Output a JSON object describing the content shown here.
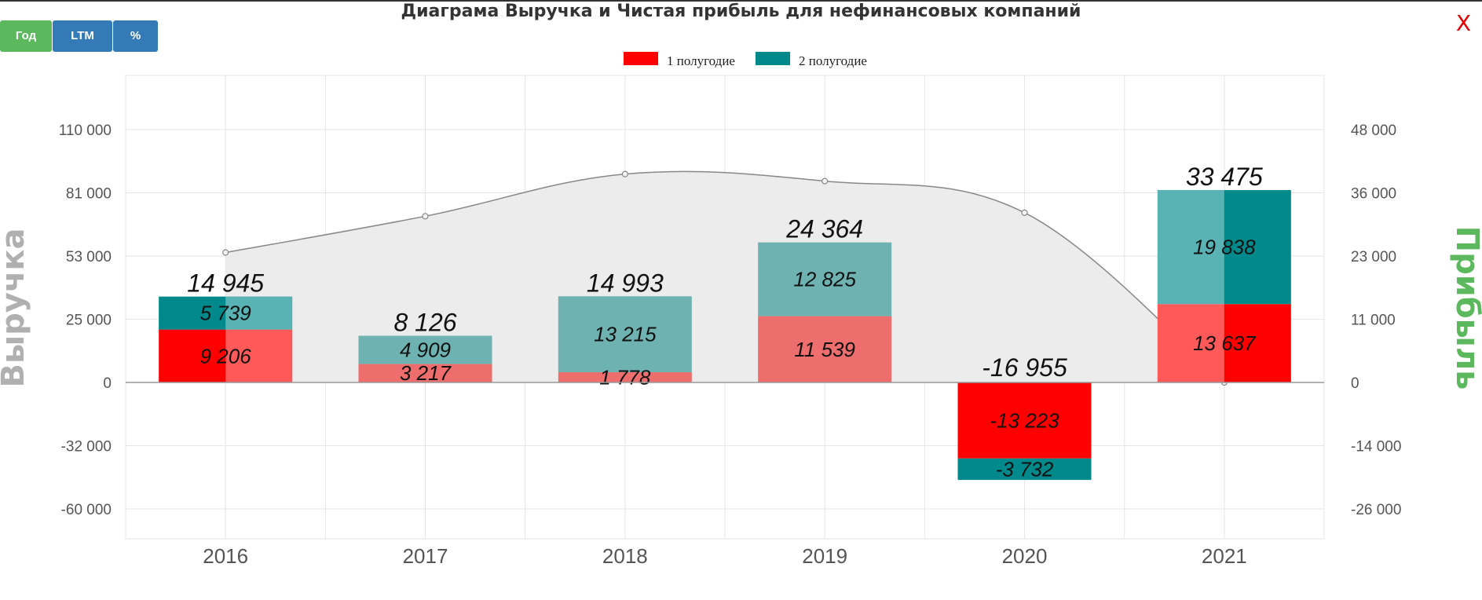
{
  "window": {
    "title": "Диаграма Выручка и Чистая прибыль для нефинансовых компаний",
    "close_label": "X"
  },
  "toolbar": {
    "year_label": "Год",
    "ltm_label": "LTM",
    "percent_label": "%"
  },
  "colors": {
    "h1": "#ff0000",
    "h1_light": "#ee6e6e",
    "h2": "#00898a",
    "h2_light": "#6fb2b2",
    "area_fill": "#ececec",
    "line": "#888888",
    "active_button": "#5cb85c",
    "button": "#337ab7",
    "close": "#e00000",
    "right_axis_title": "#5cb85c",
    "left_axis_title": "#b0b0b0"
  },
  "chart_data": {
    "type": "bar",
    "title": "Диаграма Выручка и Чистая прибыль для нефинансовых компаний",
    "categories": [
      "2016",
      "2017",
      "2018",
      "2019",
      "2020",
      "2021"
    ],
    "legend": {
      "position": "top-center",
      "items": [
        "1 полугодие",
        "2 полугодие"
      ]
    },
    "grid": true,
    "y_left": {
      "label": "Выручка",
      "ticks": [
        "110 000",
        "81 000",
        "53 000",
        "25 000",
        "0",
        "-32 000",
        "-60 000"
      ]
    },
    "y_right": {
      "label": "Прибыль",
      "ticks": [
        "48 000",
        "36 000",
        "23 000",
        "11 000",
        "0",
        "-14 000",
        "-26 000"
      ]
    },
    "series": [
      {
        "name": "1 полугодие",
        "values": [
          9206,
          3217,
          1778,
          11539,
          -13223,
          13637
        ],
        "labels": [
          "9 206",
          "3 217",
          "1 778",
          "11 539",
          "-13 223",
          "13 637"
        ]
      },
      {
        "name": "2 полугодие",
        "values": [
          5739,
          4909,
          13215,
          12825,
          -3732,
          19838
        ],
        "labels": [
          "5 739",
          "4 909",
          "13 215",
          "12 825",
          "-3 732",
          "19 838"
        ]
      }
    ],
    "totals": [
      14945,
      8126,
      14993,
      24364,
      -16955,
      33475
    ],
    "total_labels": [
      "14 945",
      "8 126",
      "14 993",
      "24 364",
      "-16 955",
      "33 475"
    ],
    "revenue_line": [
      55500,
      71000,
      89000,
      86000,
      72500,
      0
    ]
  }
}
